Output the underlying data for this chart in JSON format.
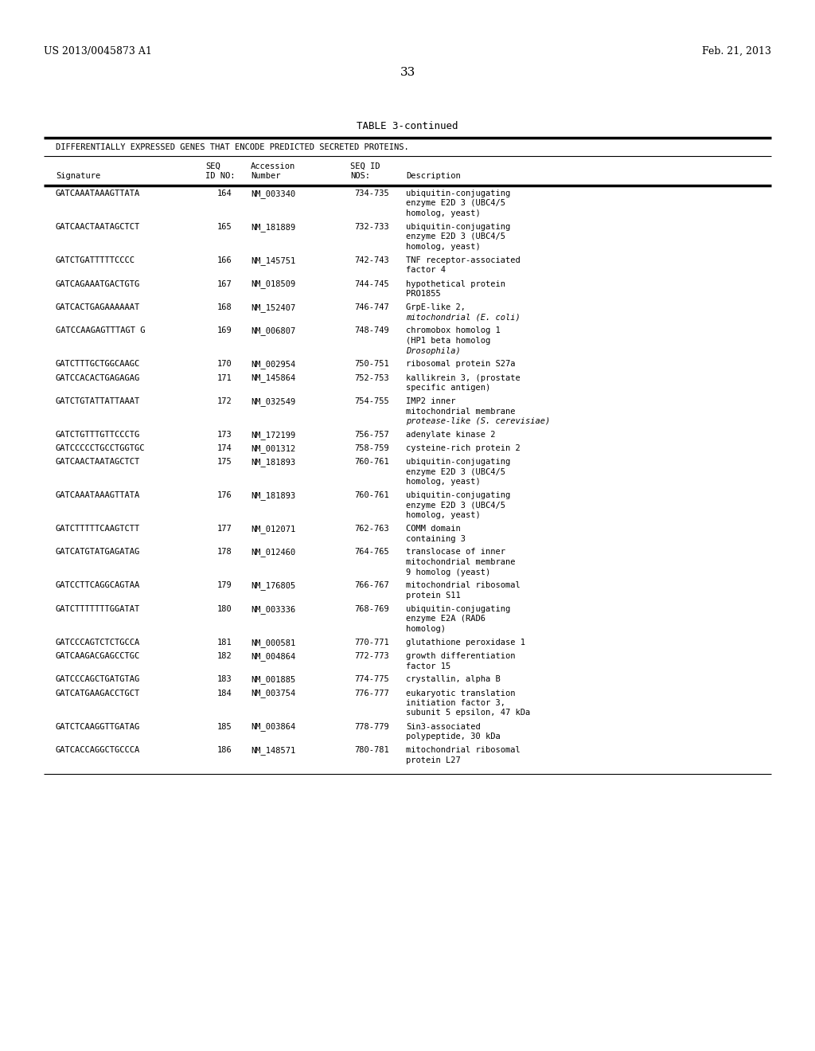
{
  "page_header_left": "US 2013/0045873 A1",
  "page_header_right": "Feb. 21, 2013",
  "page_number": "33",
  "table_title": "TABLE 3-continued",
  "table_subtitle": "DIFFERENTIALLY EXPRESSED GENES THAT ENCODE PREDICTED SECRETED PROTEINS.",
  "col_headers_line1": [
    "",
    "SEQ",
    "Accession",
    "SEQ ID",
    ""
  ],
  "col_headers_line2": [
    "Signature",
    "ID NO:",
    "Number",
    "NOS:",
    "Description"
  ],
  "rows": [
    [
      "GATCAAATAAAGTTATA",
      "164",
      "NM_003340",
      "734-735",
      "ubiquitin-conjugating\nenzyme E2D 3 (UBC4/5\nhomolog, yeast)",
      ""
    ],
    [
      "GATCAACTAATAGCTCT",
      "165",
      "NM_181889",
      "732-733",
      "ubiquitin-conjugating\nenzyme E2D 3 (UBC4/5\nhomolog, yeast)",
      ""
    ],
    [
      "GATCTGATTTTTCCCC",
      "166",
      "NM_145751",
      "742-743",
      "TNF receptor-associated\nfactor 4",
      ""
    ],
    [
      "GATCAGAAATGACTGTG",
      "167",
      "NM_018509",
      "744-745",
      "hypothetical protein\nPRO1855",
      ""
    ],
    [
      "GATCACTGAGAAAAAAT",
      "168",
      "NM_152407",
      "746-747",
      "GrpE-like 2,\nmitochondrial (E. coli)",
      "italic_last"
    ],
    [
      "GATCCAAGAGTTTAGT G",
      "169",
      "NM_006807",
      "748-749",
      "chromobox homolog 1\n(HP1 beta homolog\nDrosophila)",
      "italic_last"
    ],
    [
      "GATCTTTGCTGGCAAGC",
      "170",
      "NM_002954",
      "750-751",
      "ribosomal protein S27a",
      ""
    ],
    [
      "GATCCACACTGAGAGAG",
      "171",
      "NM_145864",
      "752-753",
      "kallikrein 3, (prostate\nspecific antigen)",
      ""
    ],
    [
      "GATCTGTATTATTAAAT",
      "172",
      "NM_032549",
      "754-755",
      "IMP2 inner\nmitochondrial membrane\nprotease-like (S. cerevisiae)",
      "italic_last"
    ],
    [
      "GATCTGTTTGTTCCCTG",
      "173",
      "NM_172199",
      "756-757",
      "adenylate kinase 2",
      ""
    ],
    [
      "GATCCCCCTGCCTGGTGC",
      "174",
      "NM_001312",
      "758-759",
      "cysteine-rich protein 2",
      ""
    ],
    [
      "GATCAACTAATAGCTCT",
      "175",
      "NM_181893",
      "760-761",
      "ubiquitin-conjugating\nenzyme E2D 3 (UBC4/5\nhomolog, yeast)",
      ""
    ],
    [
      "GATCAAATAAAGTTATA",
      "176",
      "NM_181893",
      "760-761",
      "ubiquitin-conjugating\nenzyme E2D 3 (UBC4/5\nhomolog, yeast)",
      ""
    ],
    [
      "GATCTTTTTCAAGTCTT",
      "177",
      "NM_012071",
      "762-763",
      "COMM domain\ncontaining 3",
      ""
    ],
    [
      "GATCATGTATGAGATAG",
      "178",
      "NM_012460",
      "764-765",
      "translocase of inner\nmitochondrial membrane\n9 homolog (yeast)",
      ""
    ],
    [
      "GATCCTTCAGGCAGTAA",
      "179",
      "NM_176805",
      "766-767",
      "mitochondrial ribosomal\nprotein S11",
      ""
    ],
    [
      "GATCTTTTTTTGGATAT",
      "180",
      "NM_003336",
      "768-769",
      "ubiquitin-conjugating\nenzyme E2A (RAD6\nhomolog)",
      ""
    ],
    [
      "GATCCCAGTCTCTGCCA",
      "181",
      "NM_000581",
      "770-771",
      "glutathione peroxidase 1",
      ""
    ],
    [
      "GATCAAGACGAGCCTGC",
      "182",
      "NM_004864",
      "772-773",
      "growth differentiation\nfactor 15",
      ""
    ],
    [
      "GATCCCAGCTGATGTAG",
      "183",
      "NM_001885",
      "774-775",
      "crystallin, alpha B",
      ""
    ],
    [
      "GATCATGAAGACCTGCT",
      "184",
      "NM_003754",
      "776-777",
      "eukaryotic translation\ninitiation factor 3,\nsubunit 5 epsilon, 47 kDa",
      ""
    ],
    [
      "GATCTCAAGGTTGATAG",
      "185",
      "NM_003864",
      "778-779",
      "Sin3-associated\npolypeptide, 30 kDa",
      ""
    ],
    [
      "GATCACCAGGCTGCCCA",
      "186",
      "NM_148571",
      "780-781",
      "mitochondrial ribosomal\nprotein L27",
      ""
    ]
  ],
  "bg_color": "#ffffff",
  "text_color": "#000000"
}
